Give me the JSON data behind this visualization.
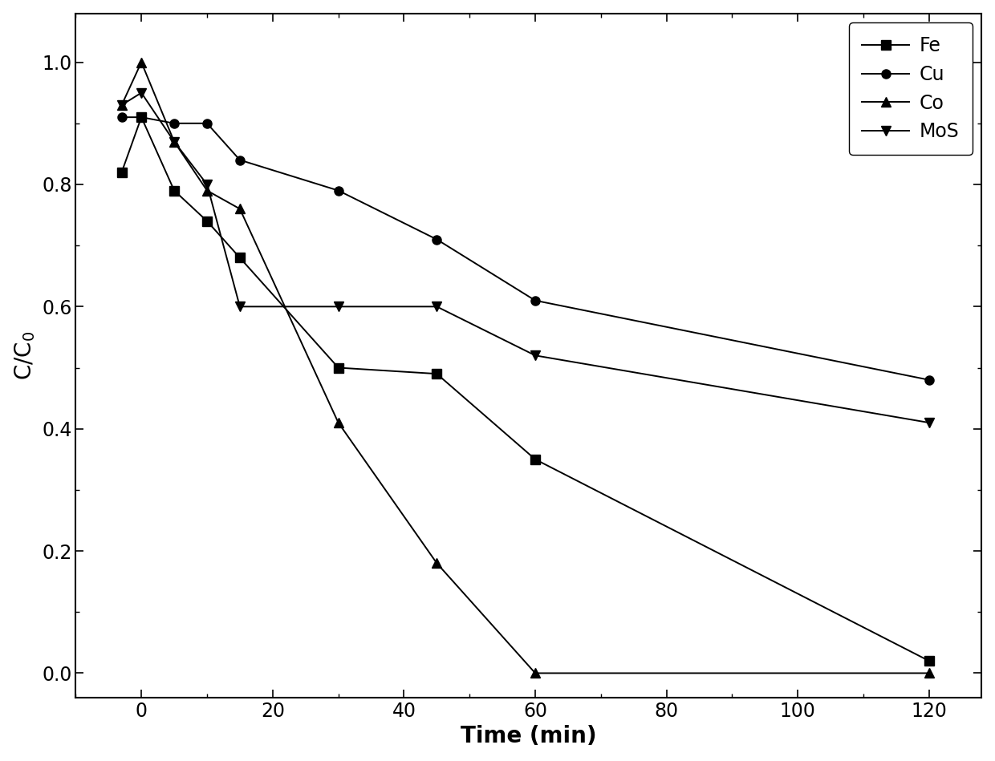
{
  "title": "",
  "xlabel": "Time (min)",
  "ylabel": "C/C$_0$",
  "xlim": [
    -10,
    128
  ],
  "ylim": [
    -0.04,
    1.08
  ],
  "yticks": [
    0.0,
    0.2,
    0.4,
    0.6,
    0.8,
    1.0
  ],
  "xticks": [
    0,
    20,
    40,
    60,
    80,
    100,
    120
  ],
  "series": [
    {
      "label": "Fe",
      "marker": "s",
      "x": [
        -3,
        0,
        5,
        10,
        15,
        30,
        45,
        60,
        120
      ],
      "y": [
        0.82,
        0.91,
        0.79,
        0.74,
        0.68,
        0.5,
        0.49,
        0.35,
        0.02
      ]
    },
    {
      "label": "Cu",
      "marker": "o",
      "x": [
        -3,
        0,
        5,
        10,
        15,
        30,
        45,
        60,
        120
      ],
      "y": [
        0.91,
        0.91,
        0.9,
        0.9,
        0.84,
        0.79,
        0.71,
        0.61,
        0.48
      ]
    },
    {
      "label": "Co",
      "marker": "^",
      "x": [
        -3,
        0,
        5,
        10,
        15,
        30,
        45,
        60,
        120
      ],
      "y": [
        0.93,
        1.0,
        0.87,
        0.79,
        0.76,
        0.41,
        0.18,
        0.0,
        0.0
      ]
    },
    {
      "label": "MoS",
      "marker": "v",
      "x": [
        -3,
        0,
        5,
        10,
        15,
        30,
        45,
        60,
        120
      ],
      "y": [
        0.93,
        0.95,
        0.87,
        0.8,
        0.6,
        0.6,
        0.6,
        0.52,
        0.41
      ]
    }
  ],
  "line_color": "#000000",
  "background_color": "#ffffff",
  "marker_size": 8,
  "linewidth": 1.4,
  "legend_fontsize": 17,
  "axis_label_fontsize": 20,
  "tick_fontsize": 17
}
